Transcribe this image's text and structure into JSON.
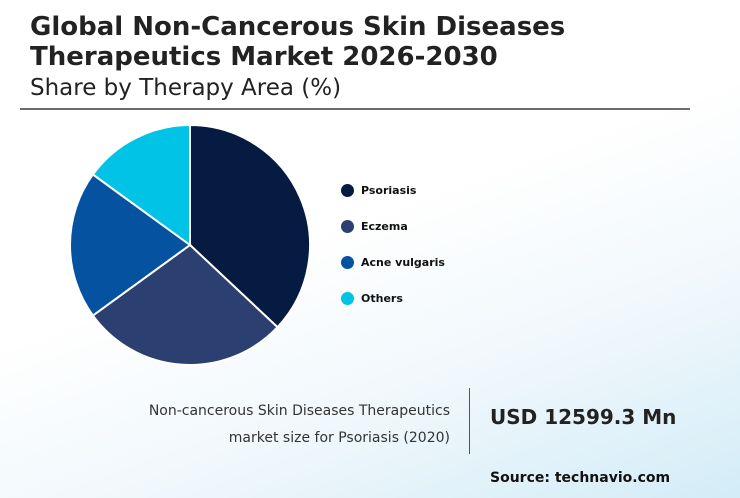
{
  "header": {
    "title": "Global Non-Cancerous Skin Diseases Therapeutics Market 2026-2030",
    "subtitle": "Share by Therapy Area (%)"
  },
  "chart_data": {
    "type": "pie",
    "categories": [
      "Psoriasis",
      "Eczema",
      "Acne vulgaris",
      "Others"
    ],
    "values": [
      37,
      28,
      20,
      15
    ],
    "colors": [
      "#061b41",
      "#2b3f70",
      "#0552a1",
      "#00c3e6"
    ],
    "start_angle_deg": 0,
    "direction": "clockwise",
    "legend_position": "right"
  },
  "kpi": {
    "description_line1": "Non-cancerous Skin Diseases Therapeutics",
    "description_line2": "market size for Psoriasis (2020)",
    "value": "USD 12599.3 Mn"
  },
  "footer": {
    "source": "Source: technavio.com"
  }
}
